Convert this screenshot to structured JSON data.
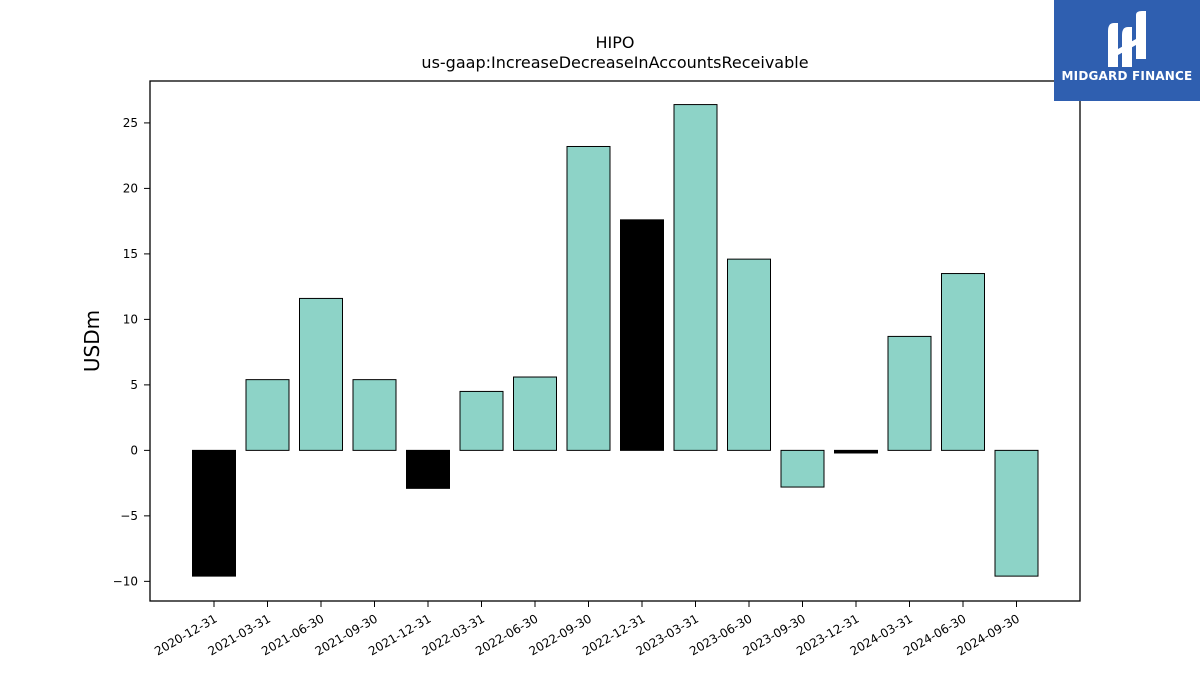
{
  "brand": {
    "name": "MIDGARD FINANCE",
    "logo_icon": "midgard-logo-icon",
    "background": "#2f5fb0"
  },
  "chart_data": {
    "type": "bar",
    "title": "HIPO",
    "subtitle": "us-gaap:IncreaseDecreaseInAccountsReceivable",
    "xlabel": "",
    "ylabel": "USDm",
    "ylim": [
      -11.5,
      28.2
    ],
    "yticks": [
      -10,
      -5,
      0,
      5,
      10,
      15,
      20,
      25
    ],
    "ytick_labels": [
      "−10",
      "−5",
      "0",
      "5",
      "10",
      "15",
      "20",
      "25"
    ],
    "grid": false,
    "categories": [
      "2020-12-31",
      "2021-03-31",
      "2021-06-30",
      "2021-09-30",
      "2021-12-31",
      "2022-03-31",
      "2022-06-30",
      "2022-09-30",
      "2022-12-31",
      "2023-03-31",
      "2023-06-30",
      "2023-09-30",
      "2023-12-31",
      "2024-03-31",
      "2024-06-30",
      "2024-09-30"
    ],
    "values": [
      -9.6,
      5.4,
      11.6,
      5.4,
      -2.9,
      4.5,
      5.6,
      23.2,
      17.6,
      26.4,
      14.6,
      -2.8,
      -0.2,
      8.7,
      13.5,
      -9.6
    ],
    "colors": [
      "#000000",
      "#8dd3c7",
      "#8dd3c7",
      "#8dd3c7",
      "#000000",
      "#8dd3c7",
      "#8dd3c7",
      "#8dd3c7",
      "#000000",
      "#8dd3c7",
      "#8dd3c7",
      "#8dd3c7",
      "#000000",
      "#8dd3c7",
      "#8dd3c7",
      "#8dd3c7"
    ]
  }
}
